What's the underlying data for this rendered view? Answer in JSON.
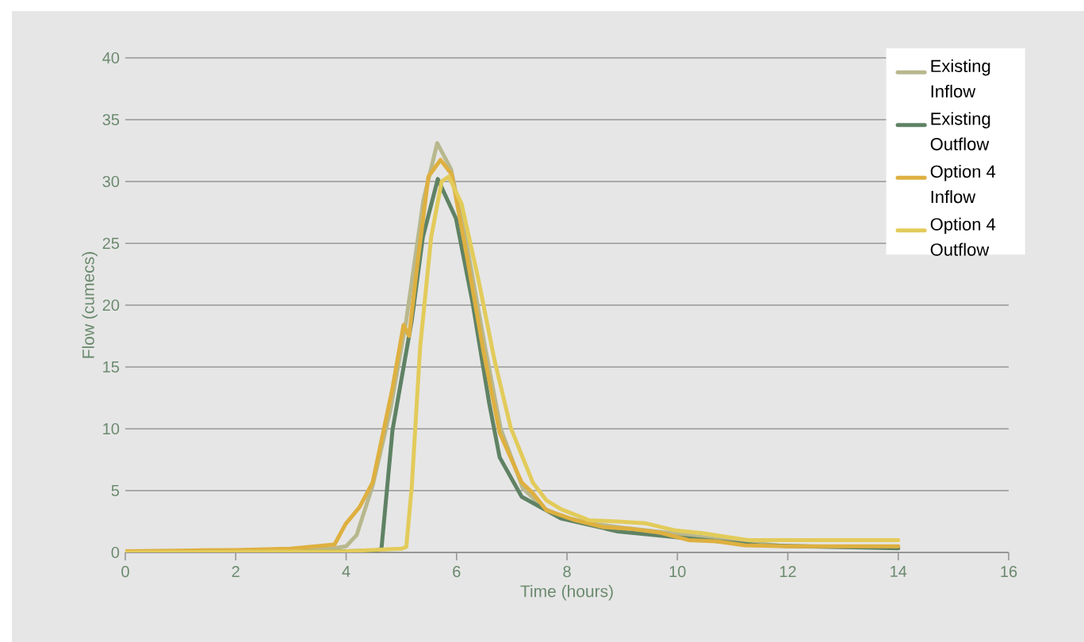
{
  "chart_data": {
    "type": "line",
    "xlabel": "Time (hours)",
    "ylabel": "Flow (cumecs)",
    "xlim": [
      0,
      16
    ],
    "ylim": [
      0,
      40
    ],
    "xticks": [
      0,
      2,
      4,
      6,
      8,
      10,
      12,
      14,
      16
    ],
    "yticks": [
      0,
      5,
      10,
      15,
      20,
      25,
      30,
      35,
      40
    ],
    "grid": "y",
    "legend": "top right",
    "marker": "none",
    "line_style": "solid",
    "series": [
      {
        "name": "Existing Inflow",
        "color": "#b8b88e",
        "x": [
          0,
          1,
          2,
          3,
          3.8,
          4.0,
          4.19,
          4.48,
          4.8,
          5.09,
          5.4,
          5.65,
          5.9,
          6.2,
          6.5,
          6.8,
          7.2,
          7.6,
          8.0,
          8.5,
          9.0,
          10.0,
          11.0,
          12.0,
          14.0
        ],
        "values": [
          0.05,
          0.1,
          0.15,
          0.25,
          0.35,
          0.5,
          1.4,
          5.4,
          11.5,
          18.8,
          28.5,
          33.1,
          31.0,
          24.5,
          17.0,
          10.0,
          5.2,
          3.5,
          2.8,
          2.3,
          2.0,
          1.5,
          0.9,
          0.5,
          0.4
        ]
      },
      {
        "name": "Existing Outflow",
        "color": "#5f8264",
        "x": [
          0,
          2,
          4,
          4.55,
          4.64,
          4.84,
          5.19,
          5.39,
          5.66,
          5.99,
          6.29,
          6.59,
          6.78,
          7.18,
          7.79,
          7.89,
          8.92,
          9.94,
          11.48,
          14.0
        ],
        "values": [
          0.0,
          0.05,
          0.1,
          0.15,
          0.3,
          9.9,
          18.8,
          25.5,
          30.2,
          27.0,
          20.2,
          12.1,
          7.7,
          4.5,
          3.0,
          2.75,
          1.7,
          1.25,
          0.58,
          0.33
        ]
      },
      {
        "name": "Option 4 Inflow",
        "color": "#deb040",
        "x": [
          0,
          1,
          2,
          3,
          3.79,
          3.99,
          4.24,
          4.48,
          4.68,
          4.84,
          5.04,
          5.14,
          5.29,
          5.49,
          5.71,
          5.91,
          6.19,
          6.49,
          6.78,
          7.18,
          7.38,
          7.63,
          8.15,
          8.66,
          9.17,
          9.69,
          10.2,
          10.71,
          11.22,
          12.0,
          14.0
        ],
        "values": [
          0.1,
          0.15,
          0.2,
          0.3,
          0.64,
          2.3,
          3.65,
          5.66,
          9.9,
          13.3,
          18.4,
          17.5,
          23.3,
          30.4,
          31.75,
          30.6,
          23.9,
          16.2,
          9.7,
          5.66,
          4.8,
          3.4,
          2.6,
          2.05,
          1.9,
          1.6,
          1.0,
          0.9,
          0.58,
          0.5,
          0.5
        ]
      },
      {
        "name": "Option 4 Outflow",
        "color": "#e2cb5a",
        "x": [
          0,
          2,
          4,
          5.0,
          5.09,
          5.19,
          5.34,
          5.54,
          5.73,
          5.86,
          6.09,
          6.39,
          6.69,
          6.98,
          7.38,
          7.63,
          7.89,
          8.4,
          8.92,
          9.43,
          9.94,
          10.46,
          10.97,
          11.28,
          12.0,
          14.0
        ],
        "values": [
          0.0,
          0.05,
          0.1,
          0.3,
          0.45,
          5.4,
          16.6,
          25.5,
          30.0,
          30.4,
          28.2,
          22.2,
          15.5,
          10.1,
          5.66,
          4.2,
          3.5,
          2.6,
          2.5,
          2.35,
          1.8,
          1.55,
          1.2,
          1.0,
          1.0,
          1.0
        ]
      }
    ]
  }
}
